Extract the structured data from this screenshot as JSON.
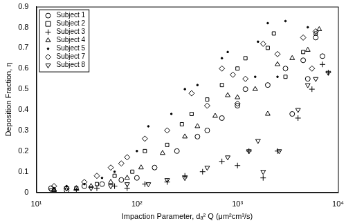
{
  "chart_data": {
    "type": "scatter",
    "x_label": "Impaction Parameter, dₐ² Q (μm²cm³/s)",
    "y_label": "Deposition Fraction, η",
    "log": "x",
    "grid": false,
    "legend": "upper left",
    "xlim": [
      10,
      10000
    ],
    "xticks": [
      {
        "value": 10,
        "label": "10¹"
      },
      {
        "value": 100,
        "label": "10²"
      },
      {
        "value": 1000,
        "label": "10³"
      },
      {
        "value": 10000,
        "label": "10⁴"
      }
    ],
    "ylim": [
      0,
      0.9
    ],
    "yticks": [
      0,
      0.1,
      0.2,
      0.3,
      0.4,
      0.5,
      0.6,
      0.7,
      0.8,
      0.9
    ],
    "series": [
      {
        "name": "Subject 1",
        "color": "#000000",
        "marker": "circle",
        "x": [
          14,
          20,
          30,
          45,
          70,
          100,
          150,
          250,
          400,
          500,
          700,
          1000,
          1200,
          2000,
          3000,
          4500,
          5000,
          7000,
          3500,
          6000
        ],
        "values": [
          0.02,
          0.01,
          0.03,
          0.04,
          0.06,
          0.07,
          0.12,
          0.2,
          0.27,
          0.3,
          0.36,
          0.42,
          0.5,
          0.52,
          0.6,
          0.64,
          0.55,
          0.66,
          0.38,
          0.75
        ]
      },
      {
        "name": "Subject 2",
        "color": "#000000",
        "marker": "square",
        "x": [
          15,
          25,
          40,
          60,
          90,
          120,
          200,
          280,
          350,
          500,
          700,
          1000,
          1200,
          2000,
          2300,
          4500,
          6000,
          3000
        ],
        "values": [
          0.01,
          0.02,
          0.04,
          0.08,
          0.1,
          0.2,
          0.23,
          0.33,
          0.38,
          0.45,
          0.52,
          0.6,
          0.65,
          0.7,
          0.77,
          0.68,
          0.77,
          0.56
        ]
      },
      {
        "name": "Subject 3",
        "color": "#000000",
        "marker": "plus",
        "x": [
          15,
          25,
          40,
          60,
          80,
          120,
          200,
          300,
          450,
          700,
          1000,
          1300,
          1800,
          2500,
          4000,
          5500,
          7000,
          8000
        ],
        "values": [
          0.01,
          0.01,
          0.02,
          0.03,
          0.02,
          0.04,
          0.05,
          0.08,
          0.1,
          0.15,
          0.13,
          0.2,
          0.07,
          0.2,
          0.36,
          0.5,
          0.62,
          0.58
        ]
      },
      {
        "name": "Subject 4",
        "color": "#000000",
        "marker": "triangle",
        "x": [
          15,
          25,
          35,
          55,
          80,
          110,
          180,
          300,
          400,
          600,
          800,
          1000,
          1500,
          2500,
          3500,
          5000,
          6500,
          2000
        ],
        "values": [
          0.01,
          0.02,
          0.03,
          0.05,
          0.07,
          0.12,
          0.19,
          0.27,
          0.32,
          0.37,
          0.47,
          0.46,
          0.5,
          0.62,
          0.65,
          0.69,
          0.79,
          0.38
        ]
      },
      {
        "name": "Subject 5",
        "color": "#000000",
        "marker": "dot",
        "x": [
          15,
          20,
          30,
          45,
          60,
          100,
          130,
          220,
          300,
          400,
          700,
          800,
          1600,
          2000,
          3000,
          5000,
          2500,
          1500
        ],
        "values": [
          0.02,
          0.03,
          0.04,
          0.07,
          0.1,
          0.2,
          0.32,
          0.38,
          0.5,
          0.52,
          0.65,
          0.68,
          0.73,
          0.82,
          0.83,
          0.8,
          0.56,
          0.56
        ]
      },
      {
        "name": "Subject 7",
        "color": "#000000",
        "marker": "diamond",
        "x": [
          15,
          20,
          30,
          40,
          55,
          70,
          80,
          120,
          200,
          350,
          500,
          700,
          900,
          1200,
          1800,
          2500,
          4500,
          6000,
          5500,
          1000
        ],
        "values": [
          0.03,
          0.02,
          0.05,
          0.08,
          0.12,
          0.14,
          0.17,
          0.26,
          0.3,
          0.48,
          0.42,
          0.6,
          0.57,
          0.55,
          0.72,
          0.67,
          0.75,
          0.78,
          0.6,
          0.43
        ]
      },
      {
        "name": "Subject 8",
        "color": "#000000",
        "marker": "triangle_down",
        "x": [
          14,
          20,
          35,
          55,
          80,
          130,
          200,
          300,
          500,
          800,
          1300,
          1800,
          2600,
          4000,
          5000,
          6000,
          8000,
          1600
        ],
        "values": [
          0.01,
          0.02,
          0.02,
          0.03,
          0.04,
          0.04,
          0.06,
          0.07,
          0.12,
          0.17,
          0.2,
          0.1,
          0.2,
          0.4,
          0.52,
          0.55,
          0.58,
          0.25
        ]
      }
    ]
  }
}
